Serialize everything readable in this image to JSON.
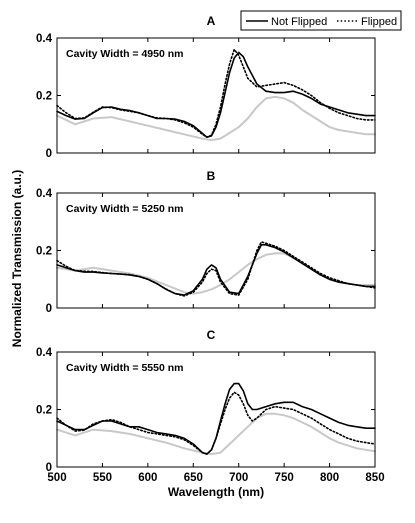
{
  "chart_data": [
    {
      "type": "line",
      "panel_label": "A",
      "annotation": "Cavity Width  = 4950 nm",
      "xlim": [
        500,
        850
      ],
      "ylim": [
        0,
        0.4
      ],
      "yticks": [
        "0",
        "0.2",
        "0.4"
      ],
      "xticks": [],
      "series": [
        {
          "name": "Not Flipped",
          "x": [
            500,
            510,
            520,
            530,
            540,
            550,
            560,
            570,
            580,
            590,
            600,
            610,
            620,
            630,
            640,
            650,
            660,
            665,
            670,
            675,
            680,
            685,
            690,
            695,
            700,
            705,
            710,
            720,
            730,
            740,
            750,
            760,
            770,
            780,
            790,
            800,
            810,
            820,
            830,
            840,
            850
          ],
          "y": [
            0.145,
            0.13,
            0.118,
            0.12,
            0.14,
            0.158,
            0.16,
            0.152,
            0.148,
            0.14,
            0.13,
            0.12,
            0.12,
            0.118,
            0.11,
            0.095,
            0.068,
            0.055,
            0.06,
            0.09,
            0.14,
            0.21,
            0.28,
            0.33,
            0.35,
            0.335,
            0.3,
            0.24,
            0.215,
            0.21,
            0.21,
            0.215,
            0.205,
            0.19,
            0.17,
            0.16,
            0.15,
            0.14,
            0.135,
            0.13,
            0.13
          ]
        },
        {
          "name": "Flipped",
          "x": [
            500,
            510,
            520,
            530,
            540,
            550,
            560,
            570,
            580,
            590,
            600,
            610,
            620,
            630,
            640,
            650,
            660,
            665,
            670,
            675,
            680,
            685,
            690,
            695,
            700,
            705,
            710,
            720,
            730,
            740,
            750,
            760,
            770,
            780,
            790,
            800,
            810,
            820,
            830,
            840,
            850
          ],
          "y": [
            0.165,
            0.14,
            0.12,
            0.122,
            0.142,
            0.16,
            0.158,
            0.15,
            0.145,
            0.14,
            0.13,
            0.122,
            0.12,
            0.115,
            0.105,
            0.09,
            0.065,
            0.055,
            0.062,
            0.1,
            0.16,
            0.24,
            0.31,
            0.36,
            0.34,
            0.3,
            0.26,
            0.23,
            0.235,
            0.24,
            0.245,
            0.235,
            0.22,
            0.2,
            0.175,
            0.155,
            0.14,
            0.13,
            0.12,
            0.115,
            0.115
          ]
        },
        {
          "name": "",
          "x": [
            500,
            520,
            540,
            560,
            580,
            600,
            620,
            640,
            660,
            670,
            680,
            690,
            700,
            710,
            720,
            730,
            740,
            750,
            760,
            770,
            780,
            790,
            800,
            810,
            820,
            830,
            840,
            850
          ],
          "y": [
            0.13,
            0.1,
            0.12,
            0.125,
            0.11,
            0.095,
            0.08,
            0.065,
            0.05,
            0.045,
            0.05,
            0.07,
            0.09,
            0.12,
            0.16,
            0.19,
            0.195,
            0.19,
            0.175,
            0.15,
            0.13,
            0.11,
            0.09,
            0.08,
            0.075,
            0.07,
            0.065,
            0.065
          ]
        }
      ]
    },
    {
      "type": "line",
      "panel_label": "B",
      "annotation": "Cavity Width  = 5250 nm",
      "xlim": [
        500,
        850
      ],
      "ylim": [
        0,
        0.4
      ],
      "yticks": [
        "0",
        "0.2",
        "0.4"
      ],
      "xticks": [],
      "series": [
        {
          "name": "Not Flipped",
          "x": [
            500,
            510,
            520,
            530,
            540,
            550,
            560,
            570,
            580,
            590,
            600,
            610,
            620,
            630,
            640,
            650,
            660,
            665,
            670,
            675,
            680,
            690,
            700,
            710,
            720,
            725,
            730,
            740,
            750,
            760,
            770,
            780,
            790,
            800,
            810,
            820,
            830,
            840,
            850
          ],
          "y": [
            0.15,
            0.14,
            0.13,
            0.125,
            0.125,
            0.122,
            0.12,
            0.118,
            0.115,
            0.11,
            0.1,
            0.085,
            0.065,
            0.05,
            0.045,
            0.06,
            0.1,
            0.135,
            0.15,
            0.14,
            0.1,
            0.055,
            0.05,
            0.11,
            0.19,
            0.22,
            0.22,
            0.21,
            0.195,
            0.175,
            0.155,
            0.135,
            0.115,
            0.1,
            0.09,
            0.085,
            0.08,
            0.075,
            0.075
          ]
        },
        {
          "name": "Flipped",
          "x": [
            500,
            510,
            520,
            530,
            540,
            550,
            560,
            570,
            580,
            590,
            600,
            610,
            620,
            630,
            640,
            650,
            660,
            665,
            670,
            675,
            680,
            690,
            700,
            710,
            720,
            725,
            730,
            740,
            750,
            760,
            770,
            780,
            790,
            800,
            810,
            820,
            830,
            840,
            850
          ],
          "y": [
            0.165,
            0.145,
            0.13,
            0.128,
            0.127,
            0.123,
            0.12,
            0.118,
            0.116,
            0.11,
            0.1,
            0.085,
            0.066,
            0.05,
            0.042,
            0.055,
            0.09,
            0.12,
            0.135,
            0.13,
            0.09,
            0.05,
            0.045,
            0.1,
            0.2,
            0.23,
            0.225,
            0.215,
            0.2,
            0.18,
            0.16,
            0.14,
            0.12,
            0.105,
            0.095,
            0.085,
            0.08,
            0.075,
            0.07
          ]
        },
        {
          "name": "",
          "x": [
            500,
            520,
            540,
            560,
            580,
            600,
            620,
            640,
            650,
            660,
            670,
            680,
            690,
            700,
            710,
            720,
            730,
            740,
            750,
            760,
            770,
            780,
            790,
            800,
            810,
            820,
            830,
            840,
            850
          ],
          "y": [
            0.14,
            0.13,
            0.14,
            0.13,
            0.12,
            0.105,
            0.08,
            0.055,
            0.05,
            0.055,
            0.065,
            0.08,
            0.1,
            0.125,
            0.15,
            0.17,
            0.185,
            0.19,
            0.19,
            0.175,
            0.155,
            0.135,
            0.115,
            0.1,
            0.09,
            0.085,
            0.08,
            0.08,
            0.08
          ]
        }
      ]
    },
    {
      "type": "line",
      "panel_label": "C",
      "annotation": "Cavity Width  = 5550 nm",
      "xlim": [
        500,
        850
      ],
      "ylim": [
        0,
        0.4
      ],
      "yticks": [
        "0",
        "0.2",
        "0.4"
      ],
      "xticks": [
        "500",
        "550",
        "600",
        "650",
        "700",
        "750",
        "800",
        "850"
      ],
      "xlabel": "Wavelength (nm)",
      "series": [
        {
          "name": "Not Flipped",
          "x": [
            500,
            510,
            520,
            530,
            540,
            550,
            560,
            570,
            580,
            590,
            600,
            610,
            620,
            630,
            640,
            650,
            660,
            665,
            670,
            675,
            680,
            685,
            690,
            695,
            700,
            705,
            710,
            715,
            720,
            730,
            740,
            750,
            760,
            770,
            780,
            790,
            800,
            810,
            820,
            830,
            840,
            850
          ],
          "y": [
            0.16,
            0.145,
            0.13,
            0.13,
            0.145,
            0.16,
            0.16,
            0.15,
            0.14,
            0.14,
            0.13,
            0.12,
            0.115,
            0.11,
            0.1,
            0.08,
            0.05,
            0.045,
            0.06,
            0.1,
            0.16,
            0.22,
            0.27,
            0.29,
            0.29,
            0.265,
            0.22,
            0.2,
            0.2,
            0.21,
            0.22,
            0.225,
            0.225,
            0.21,
            0.2,
            0.185,
            0.17,
            0.155,
            0.145,
            0.14,
            0.135,
            0.135
          ]
        },
        {
          "name": "Flipped",
          "x": [
            500,
            510,
            520,
            530,
            540,
            550,
            560,
            570,
            580,
            590,
            600,
            610,
            620,
            630,
            640,
            650,
            660,
            665,
            670,
            675,
            680,
            685,
            690,
            695,
            700,
            705,
            710,
            715,
            720,
            730,
            740,
            750,
            760,
            770,
            780,
            790,
            800,
            810,
            820,
            830,
            840,
            850
          ],
          "y": [
            0.17,
            0.145,
            0.125,
            0.128,
            0.15,
            0.16,
            0.165,
            0.155,
            0.14,
            0.13,
            0.12,
            0.115,
            0.11,
            0.105,
            0.095,
            0.075,
            0.05,
            0.045,
            0.06,
            0.1,
            0.15,
            0.2,
            0.24,
            0.26,
            0.25,
            0.22,
            0.18,
            0.16,
            0.17,
            0.2,
            0.21,
            0.205,
            0.2,
            0.185,
            0.17,
            0.15,
            0.13,
            0.115,
            0.1,
            0.09,
            0.085,
            0.08
          ]
        },
        {
          "name": "",
          "x": [
            500,
            520,
            540,
            560,
            580,
            600,
            620,
            640,
            660,
            670,
            680,
            690,
            700,
            710,
            720,
            730,
            740,
            750,
            760,
            770,
            780,
            790,
            800,
            810,
            820,
            830,
            840,
            850
          ],
          "y": [
            0.13,
            0.11,
            0.13,
            0.125,
            0.115,
            0.1,
            0.085,
            0.065,
            0.05,
            0.045,
            0.05,
            0.08,
            0.11,
            0.14,
            0.17,
            0.185,
            0.185,
            0.18,
            0.17,
            0.155,
            0.14,
            0.12,
            0.1,
            0.085,
            0.075,
            0.065,
            0.06,
            0.055
          ]
        }
      ]
    }
  ],
  "shared": {
    "ylabel": "Normalized Transmission (a.u.)",
    "legend": {
      "placement": "top-right",
      "items": [
        {
          "label": "Not Flipped",
          "style": "solid"
        },
        {
          "label": "Flipped",
          "style": "dotted"
        }
      ]
    },
    "colors": {
      "not_flipped": "#000000",
      "flipped": "#000000",
      "reference": "#c8c8c8",
      "axes": "#000000"
    }
  }
}
